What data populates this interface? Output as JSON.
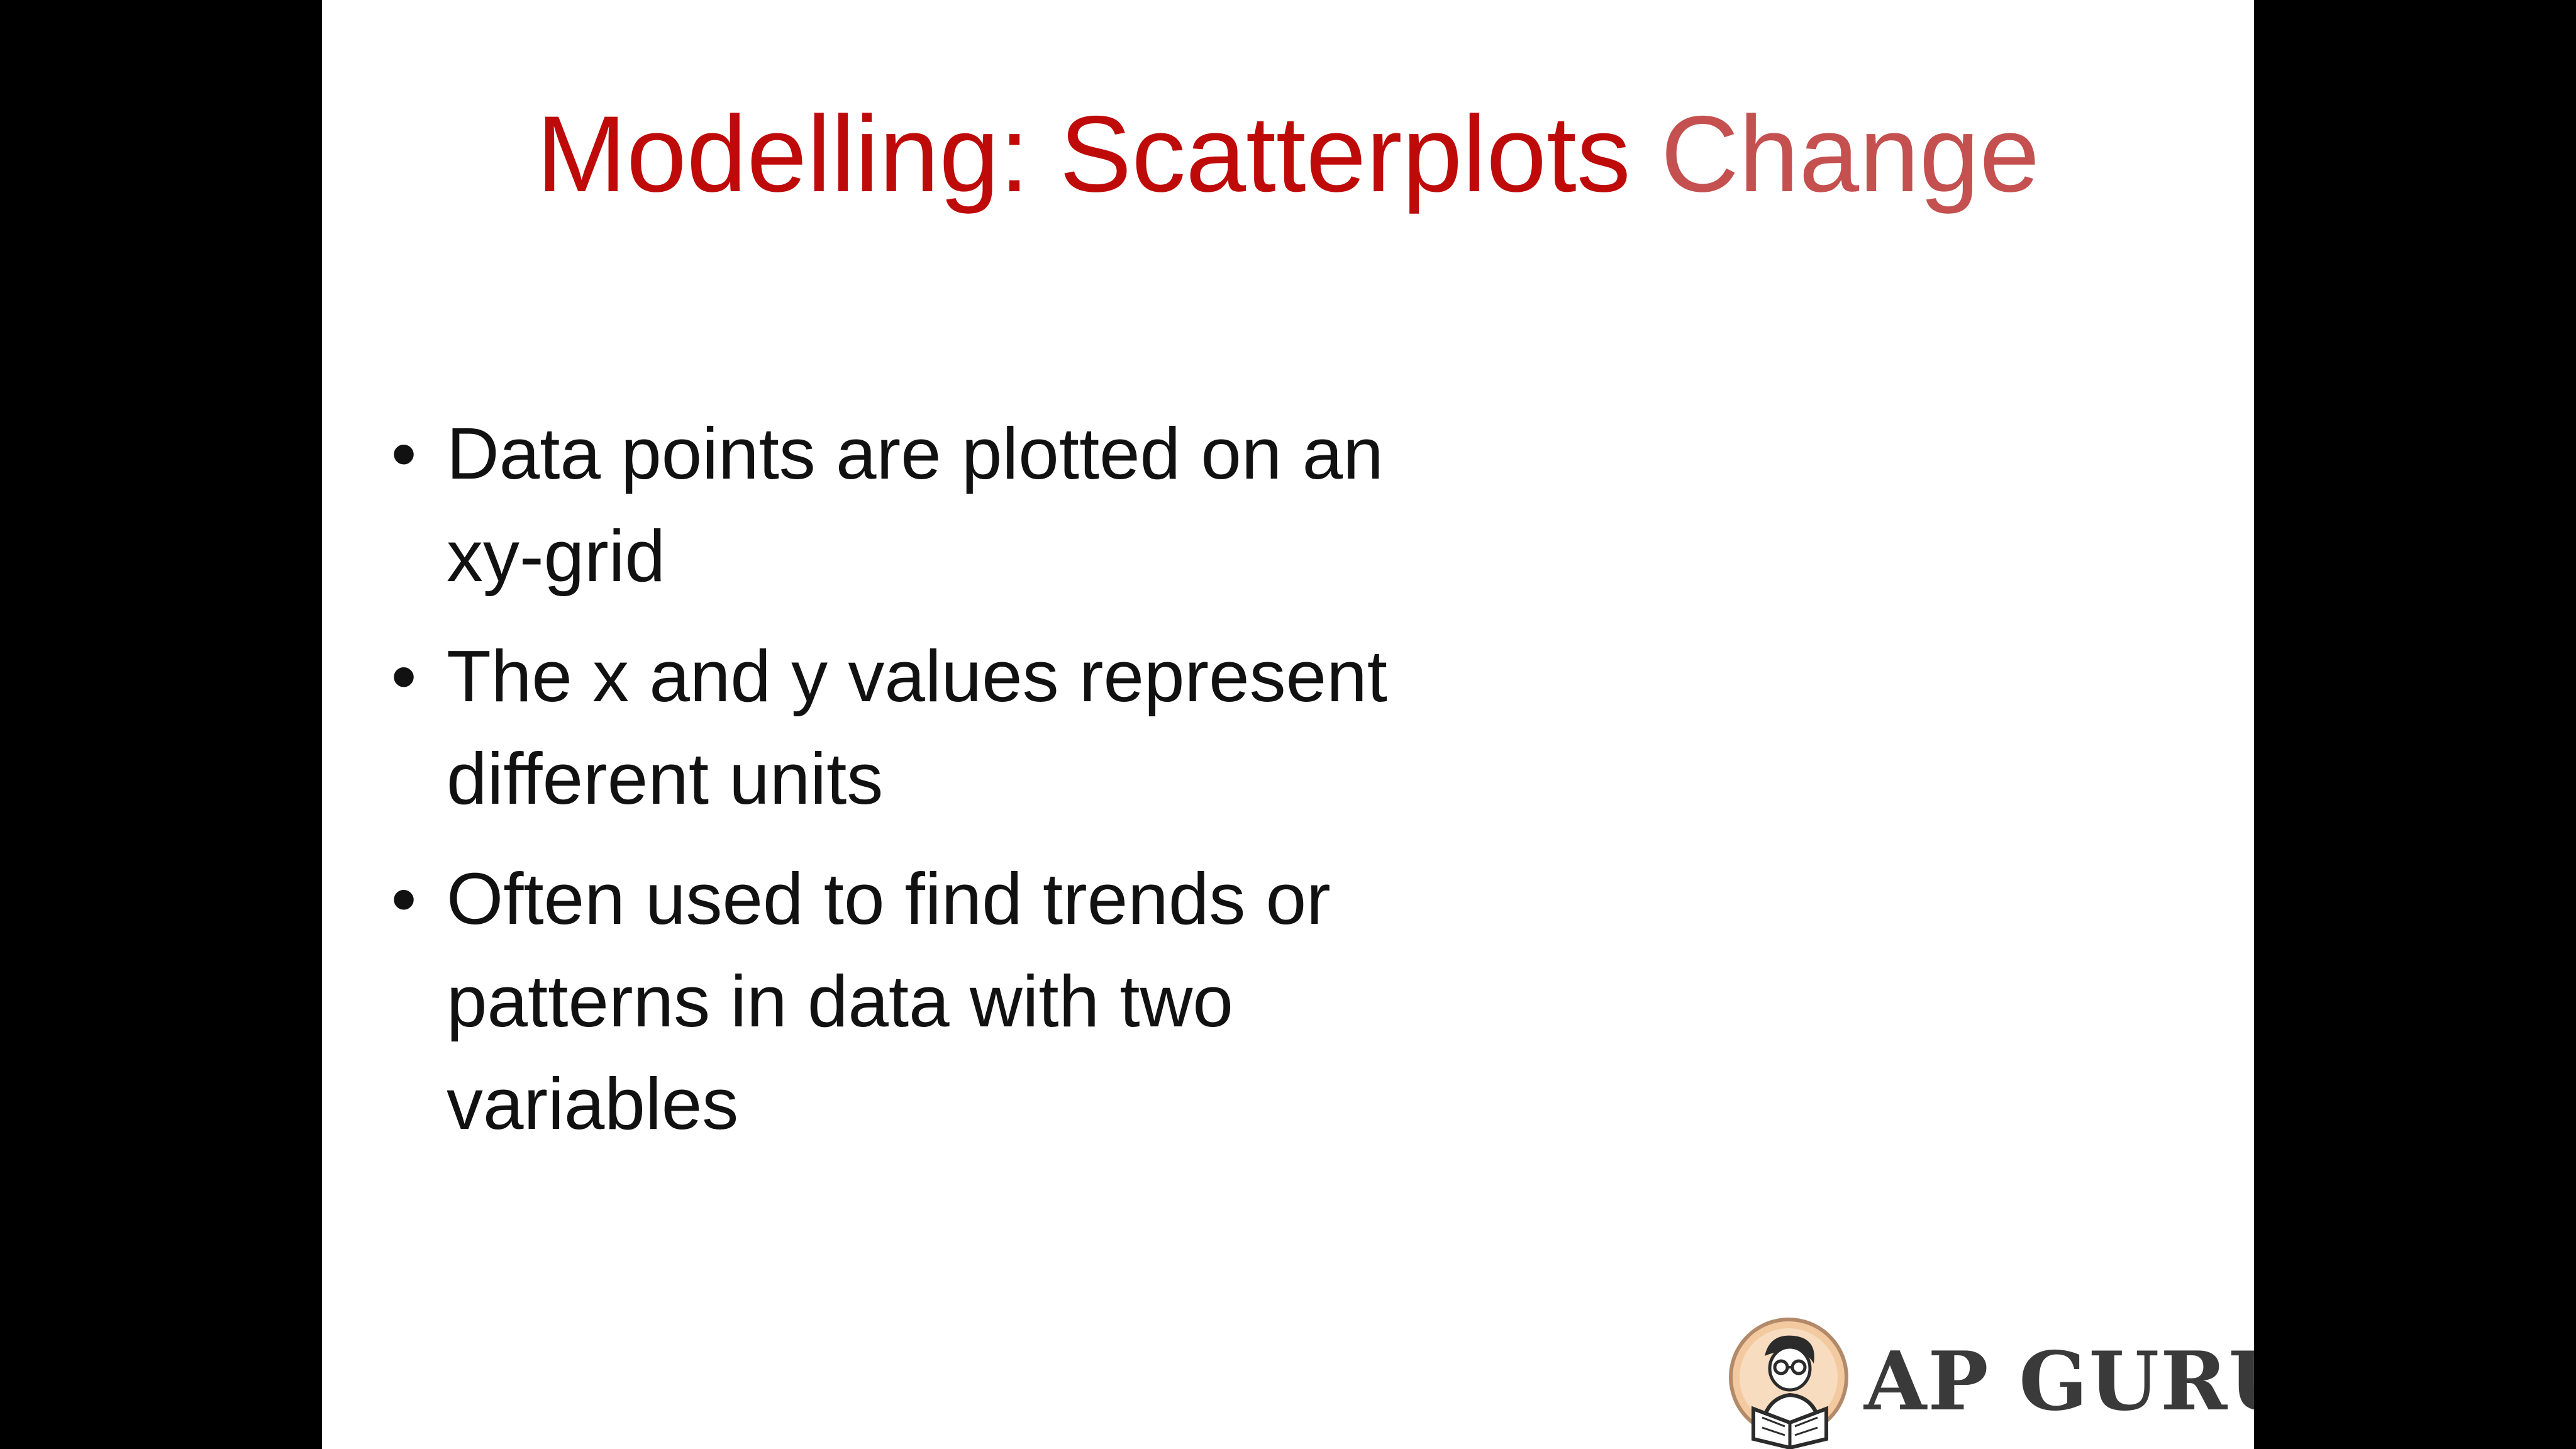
{
  "slide": {
    "title_main": "Modelling: Scatterplots",
    "title_accent": "Change",
    "bullets": [
      "Data points are plotted on an xy-grid",
      "The x and y values represent different units",
      "Often used to find trends or patterns in data with two variables"
    ],
    "bullet_symbol": "•"
  },
  "logo": {
    "text": "AP GURU",
    "icon": "reading-person-icon"
  },
  "colors": {
    "title": "#bf0a0a",
    "title_accent": "#c4504f",
    "body_text": "#111111",
    "background": "#ffffff",
    "frame": "#000000",
    "logo_text": "#3a3a3a"
  }
}
